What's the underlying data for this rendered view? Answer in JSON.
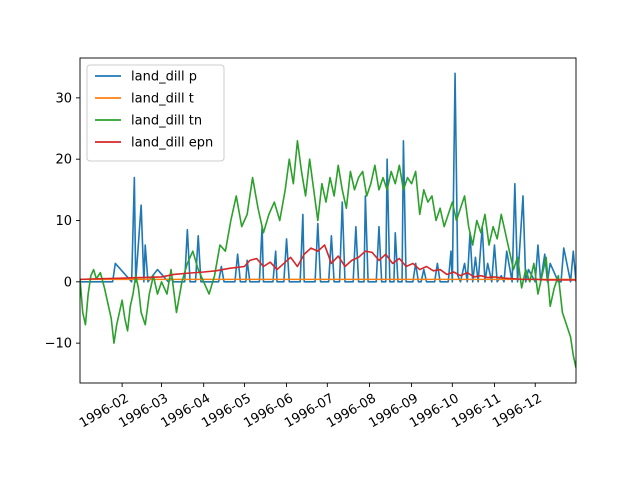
{
  "chart_data": {
    "type": "line",
    "title": "",
    "xlabel": "",
    "ylabel": "",
    "x_range": [
      "1996-01-01",
      "1996-12-31"
    ],
    "ylim": [
      -16.5,
      36.5
    ],
    "grid": false,
    "legend_position": "top-left",
    "x_ticks": [
      "1996-02",
      "1996-03",
      "1996-04",
      "1996-05",
      "1996-06",
      "1996-07",
      "1996-08",
      "1996-09",
      "1996-10",
      "1996-11",
      "1996-12"
    ],
    "y_ticks": [
      -10,
      0,
      10,
      20,
      30
    ],
    "y_tick_labels": [
      "−10",
      "0",
      "10",
      "20",
      "30"
    ],
    "series": [
      {
        "name": "land_dill p",
        "color": "#1f77b4",
        "x": [
          "1996-01-01",
          "1996-01-25",
          "1996-01-27",
          "1996-02-08",
          "1996-02-10",
          "1996-02-11",
          "1996-02-15",
          "1996-02-17",
          "1996-02-18",
          "1996-02-20",
          "1996-02-27",
          "1996-03-06",
          "1996-03-08",
          "1996-03-10",
          "1996-03-18",
          "1996-03-20",
          "1996-03-22",
          "1996-03-26",
          "1996-03-28",
          "1996-03-30",
          "1996-04-12",
          "1996-04-14",
          "1996-04-16",
          "1996-04-24",
          "1996-04-26",
          "1996-04-28",
          "1996-05-02",
          "1996-05-03",
          "1996-05-05",
          "1996-05-12",
          "1996-05-14",
          "1996-05-15",
          "1996-05-22",
          "1996-05-24",
          "1996-05-25",
          "1996-05-30",
          "1996-06-01",
          "1996-06-03",
          "1996-06-11",
          "1996-06-13",
          "1996-06-14",
          "1996-06-22",
          "1996-06-24",
          "1996-06-26",
          "1996-07-02",
          "1996-07-04",
          "1996-07-06",
          "1996-07-10",
          "1996-07-12",
          "1996-07-14",
          "1996-07-20",
          "1996-07-22",
          "1996-07-24",
          "1996-07-28",
          "1996-07-29",
          "1996-07-31",
          "1996-08-06",
          "1996-08-08",
          "1996-08-10",
          "1996-08-13",
          "1996-08-14",
          "1996-08-16",
          "1996-08-19",
          "1996-08-20",
          "1996-08-22",
          "1996-08-25",
          "1996-08-26",
          "1996-08-28",
          "1996-09-02",
          "1996-09-04",
          "1996-09-06",
          "1996-09-08",
          "1996-09-10",
          "1996-09-12",
          "1996-09-18",
          "1996-09-20",
          "1996-09-22",
          "1996-09-28",
          "1996-09-30",
          "1996-10-01",
          "1996-10-03",
          "1996-10-05",
          "1996-10-07",
          "1996-10-10",
          "1996-10-12",
          "1996-10-14",
          "1996-10-16",
          "1996-10-18",
          "1996-10-20",
          "1996-10-23",
          "1996-10-25",
          "1996-10-27",
          "1996-10-30",
          "1996-11-01",
          "1996-11-03",
          "1996-11-06",
          "1996-11-08",
          "1996-11-10",
          "1996-11-14",
          "1996-11-16",
          "1996-11-18",
          "1996-11-22",
          "1996-11-24",
          "1996-11-26",
          "1996-12-01",
          "1996-12-03",
          "1996-12-05",
          "1996-12-08",
          "1996-12-10",
          "1996-12-12",
          "1996-12-18",
          "1996-12-20",
          "1996-12-22",
          "1996-12-27",
          "1996-12-29",
          "1996-12-31"
        ],
        "values": [
          0,
          0,
          3,
          0,
          17,
          0,
          12.5,
          0,
          6,
          0,
          2,
          0,
          0.5,
          0,
          0,
          8.5,
          0,
          0,
          7.5,
          0,
          0,
          2.5,
          0,
          0,
          4.5,
          0,
          0,
          3.5,
          0,
          0,
          9,
          0,
          0,
          5,
          0,
          0,
          7,
          0,
          0,
          11,
          0,
          0,
          9.5,
          0,
          0,
          7.5,
          0,
          0,
          13,
          0,
          0,
          9,
          0,
          0,
          14,
          0,
          0,
          9,
          0,
          0,
          20,
          0,
          0,
          8,
          0,
          0,
          23,
          0,
          0,
          3,
          0,
          0,
          2,
          0,
          0,
          3,
          0,
          0,
          5,
          0,
          34,
          1,
          0,
          3,
          0,
          8,
          0,
          4,
          0,
          9,
          0,
          3,
          0,
          6,
          0,
          1,
          0,
          5,
          0,
          16,
          0,
          14,
          0,
          2,
          0,
          6,
          0,
          4.5,
          0,
          3,
          0,
          0,
          5.5,
          0,
          5,
          0
        ]
      },
      {
        "name": "land_dill t",
        "color": "#ff7f0e",
        "x": [
          "1996-01-01",
          "1996-12-31"
        ],
        "values": [
          0.4,
          0.4
        ]
      },
      {
        "name": "land_dill tn",
        "color": "#2ca02c",
        "x": [
          "1996-01-01",
          "1996-01-03",
          "1996-01-05",
          "1996-01-07",
          "1996-01-09",
          "1996-01-11",
          "1996-01-13",
          "1996-01-16",
          "1996-01-19",
          "1996-01-22",
          "1996-01-24",
          "1996-01-26",
          "1996-01-28",
          "1996-01-30",
          "1996-02-01",
          "1996-02-03",
          "1996-02-05",
          "1996-02-07",
          "1996-02-09",
          "1996-02-11",
          "1996-02-13",
          "1996-02-15",
          "1996-02-18",
          "1996-02-21",
          "1996-02-24",
          "1996-02-27",
          "1996-03-01",
          "1996-03-05",
          "1996-03-08",
          "1996-03-12",
          "1996-03-16",
          "1996-03-20",
          "1996-03-24",
          "1996-03-28",
          "1996-04-01",
          "1996-04-05",
          "1996-04-09",
          "1996-04-13",
          "1996-04-17",
          "1996-04-21",
          "1996-04-25",
          "1996-04-29",
          "1996-05-03",
          "1996-05-07",
          "1996-05-11",
          "1996-05-15",
          "1996-05-19",
          "1996-05-23",
          "1996-05-27",
          "1996-05-31",
          "1996-06-03",
          "1996-06-06",
          "1996-06-09",
          "1996-06-12",
          "1996-06-15",
          "1996-06-18",
          "1996-06-21",
          "1996-06-24",
          "1996-06-27",
          "1996-06-30",
          "1996-07-03",
          "1996-07-06",
          "1996-07-09",
          "1996-07-12",
          "1996-07-15",
          "1996-07-18",
          "1996-07-21",
          "1996-07-24",
          "1996-07-27",
          "1996-07-30",
          "1996-08-02",
          "1996-08-05",
          "1996-08-08",
          "1996-08-11",
          "1996-08-14",
          "1996-08-17",
          "1996-08-20",
          "1996-08-23",
          "1996-08-26",
          "1996-08-29",
          "1996-09-01",
          "1996-09-04",
          "1996-09-07",
          "1996-09-10",
          "1996-09-13",
          "1996-09-16",
          "1996-09-19",
          "1996-09-22",
          "1996-09-25",
          "1996-09-28",
          "1996-10-01",
          "1996-10-04",
          "1996-10-07",
          "1996-10-10",
          "1996-10-13",
          "1996-10-16",
          "1996-10-19",
          "1996-10-22",
          "1996-10-25",
          "1996-10-28",
          "1996-10-31",
          "1996-11-03",
          "1996-11-06",
          "1996-11-09",
          "1996-11-12",
          "1996-11-15",
          "1996-11-18",
          "1996-11-21",
          "1996-11-24",
          "1996-11-27",
          "1996-11-30",
          "1996-12-03",
          "1996-12-06",
          "1996-12-09",
          "1996-12-12",
          "1996-12-15",
          "1996-12-18",
          "1996-12-21",
          "1996-12-24",
          "1996-12-27",
          "1996-12-29",
          "1996-12-31"
        ],
        "values": [
          0.5,
          -5,
          -7,
          -2,
          1,
          2,
          0.5,
          1.5,
          -1,
          -4,
          -6,
          -10,
          -7,
          -5,
          -3,
          -6,
          -8,
          -4,
          -2,
          1,
          -1,
          -5,
          -7,
          -2,
          1,
          -2,
          0,
          -2,
          2,
          -5,
          0,
          3,
          5,
          2,
          0,
          -2,
          1,
          6,
          5,
          10,
          14,
          9,
          11,
          17,
          12,
          8,
          11,
          13,
          10,
          15,
          20,
          16,
          23,
          18,
          14,
          20,
          15,
          10,
          16,
          13,
          17,
          14,
          19,
          15,
          12,
          18,
          15,
          17,
          18,
          14,
          16,
          19,
          15,
          17,
          15,
          18,
          16,
          19,
          15,
          17,
          16,
          18,
          11,
          15,
          13,
          14,
          10,
          12,
          9,
          11,
          13,
          10,
          12,
          14,
          9,
          6,
          10,
          8,
          11,
          6,
          9,
          7,
          11,
          8,
          5,
          2,
          4,
          -1,
          2,
          0,
          3,
          -2,
          1,
          4,
          -4,
          -1,
          1,
          -5,
          -7,
          -9,
          -12,
          -14
        ]
      },
      {
        "name": "land_dill epn",
        "color": "#d62728",
        "x": [
          "1996-01-01",
          "1996-01-15",
          "1996-02-01",
          "1996-02-15",
          "1996-03-01",
          "1996-03-10",
          "1996-03-20",
          "1996-04-01",
          "1996-04-10",
          "1996-04-20",
          "1996-05-01",
          "1996-05-05",
          "1996-05-10",
          "1996-05-15",
          "1996-05-20",
          "1996-05-25",
          "1996-05-30",
          "1996-06-04",
          "1996-06-09",
          "1996-06-14",
          "1996-06-19",
          "1996-06-24",
          "1996-06-29",
          "1996-07-04",
          "1996-07-09",
          "1996-07-14",
          "1996-07-19",
          "1996-07-24",
          "1996-07-29",
          "1996-08-03",
          "1996-08-08",
          "1996-08-13",
          "1996-08-18",
          "1996-08-23",
          "1996-08-28",
          "1996-09-02",
          "1996-09-07",
          "1996-09-12",
          "1996-09-17",
          "1996-09-22",
          "1996-09-27",
          "1996-10-02",
          "1996-10-07",
          "1996-10-12",
          "1996-10-17",
          "1996-10-22",
          "1996-10-27",
          "1996-11-01",
          "1996-11-08",
          "1996-11-15",
          "1996-11-22",
          "1996-12-01",
          "1996-12-10",
          "1996-12-20",
          "1996-12-31"
        ],
        "values": [
          0.4,
          0.5,
          0.6,
          0.7,
          0.8,
          1.2,
          1.4,
          1.6,
          1.8,
          2.2,
          2.5,
          3.5,
          3.8,
          2.5,
          3.2,
          2.0,
          3.0,
          4.0,
          2.5,
          4.5,
          5.5,
          5.0,
          6.0,
          3.0,
          4.2,
          2.5,
          3.5,
          4.0,
          5.0,
          4.8,
          3.5,
          4.5,
          3.0,
          3.8,
          2.5,
          3.0,
          2.0,
          2.5,
          1.8,
          2.0,
          1.2,
          1.6,
          1.0,
          1.5,
          0.8,
          1.0,
          0.7,
          0.8,
          0.6,
          0.5,
          0.4,
          0.4,
          0.3,
          0.3,
          0.3
        ]
      }
    ]
  }
}
